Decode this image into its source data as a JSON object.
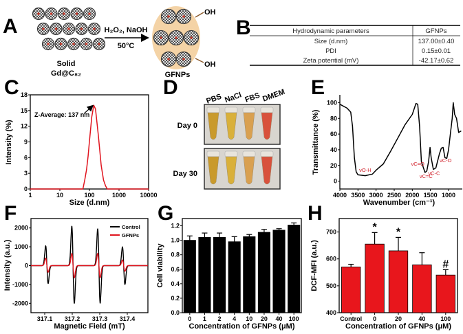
{
  "panels": [
    "A",
    "B",
    "C",
    "D",
    "E",
    "F",
    "G",
    "H"
  ],
  "scheme": {
    "solid_label": "Solid",
    "solid_formula": "Gd@C₈₂",
    "reagents": "H₂O₂, NaOH",
    "temperature": "50°C",
    "product_label": "GFNPs",
    "oh_label": "OH",
    "colors": {
      "cage": "#3a3a3a",
      "gd": "#c0392b",
      "shell": "#f4d3a6"
    }
  },
  "table": {
    "headers": [
      "Hydrodynamic parameters",
      "GFNPs"
    ],
    "rows": [
      [
        "Size (d.nm)",
        "137.00±0.40"
      ],
      [
        "PDI",
        "0.15±0.01"
      ],
      [
        "Zeta potential (mV)",
        "-42.17±0.62"
      ]
    ]
  },
  "photo": {
    "columns": [
      "PBS",
      "NaCl",
      "FBS",
      "DMEM"
    ],
    "rows": [
      "Day 0",
      "Day 30"
    ],
    "tube_colors": [
      "#c99a2c",
      "#d9b03a",
      "#d9a050",
      "#d8513c"
    ]
  },
  "chart_data": [
    {
      "id": "C",
      "type": "line",
      "xlabel": "Size (d.nm)",
      "ylabel": "Intensity (%)",
      "xscale": "log",
      "xlim": [
        1,
        10000
      ],
      "ylim": [
        0,
        18
      ],
      "xticks": [
        1,
        10,
        100,
        1000,
        10000
      ],
      "yticks": [
        0,
        3,
        6,
        9,
        12,
        15,
        18
      ],
      "color": "#e0141e",
      "x": [
        1,
        10,
        50,
        60,
        70,
        80,
        90,
        100,
        120,
        140,
        160,
        200,
        250,
        300,
        350,
        400,
        1000,
        10000
      ],
      "y": [
        0,
        0,
        0,
        0,
        1.8,
        3.7,
        6.2,
        9.1,
        13.8,
        16,
        15.3,
        10.3,
        4.5,
        1.7,
        0.6,
        0,
        0,
        0
      ],
      "annotation": {
        "text": "Z-Average: 137 nm",
        "x": 140,
        "y": 16
      }
    },
    {
      "id": "E",
      "type": "line",
      "xlabel": "Wavenumber (cm⁻¹)",
      "ylabel": "Transmittance (%)",
      "xlim": [
        4000,
        620
      ],
      "ylim": [
        -10,
        110
      ],
      "xticks": [
        4000,
        3500,
        3000,
        2500,
        2000,
        1500,
        1000
      ],
      "yticks": [
        0,
        20,
        40,
        60,
        80,
        100
      ],
      "color": "#000000",
      "x": [
        4000,
        3800,
        3700,
        3650,
        3600,
        3550,
        3500,
        3300,
        3100,
        3000,
        2800,
        2600,
        2400,
        2200,
        2000,
        1900,
        1850,
        1800,
        1750,
        1700,
        1650,
        1600,
        1550,
        1510,
        1480,
        1420,
        1350,
        1250,
        1200,
        1150,
        1100,
        1050,
        1000,
        950,
        900,
        870,
        830,
        780,
        720,
        650
      ],
      "y": [
        98,
        93,
        88,
        70,
        30,
        12,
        8,
        7,
        9,
        14,
        22,
        38,
        55,
        72,
        85,
        99,
        98,
        70,
        25,
        18,
        11,
        13,
        25,
        43,
        30,
        15,
        17,
        35,
        42,
        43,
        30,
        29,
        40,
        60,
        80,
        100,
        85,
        80,
        62,
        64
      ],
      "annotations": [
        {
          "text": "νO-H",
          "x": 3300,
          "y": 12
        },
        {
          "text": "νC=O",
          "x": 1850,
          "y": 20
        },
        {
          "text": "νC=C",
          "x": 1620,
          "y": 4
        },
        {
          "text": "νC-C",
          "x": 1400,
          "y": 8
        },
        {
          "text": "νC-O",
          "x": 1080,
          "y": 24
        }
      ],
      "annotation_color": "#d0202a"
    },
    {
      "id": "F",
      "type": "line",
      "xlabel": "Magnetic Field (mT)",
      "ylabel": "Intensity (a.u.)",
      "xlim": [
        317.05,
        317.475
      ],
      "ylim": [
        -2500,
        2500
      ],
      "xticks": [
        317.1,
        317.2,
        317.3,
        317.4
      ],
      "yticks": [
        -2000,
        -1000,
        0,
        1000,
        2000
      ],
      "legend": "top-right",
      "line_centers": [
        317.108,
        317.203,
        317.297,
        317.387
      ],
      "series": [
        {
          "name": "Control",
          "color": "#000000",
          "positive_peaks": [
            1050,
            2100,
            1950,
            1000
          ],
          "negative_peaks": [
            -950,
            -2000,
            -2000,
            -1000
          ]
        },
        {
          "name": "GFNPs",
          "color": "#e0141e",
          "positive_peaks": [
            400,
            650,
            650,
            300
          ],
          "negative_peaks": [
            -350,
            -650,
            -650,
            -300
          ]
        }
      ]
    },
    {
      "id": "G",
      "type": "bar",
      "xlabel": "Concentration of GFNPs (μM)",
      "ylabel": "Cell viability",
      "ylim": [
        0,
        1.3
      ],
      "yticks": [
        0.0,
        0.2,
        0.4,
        0.6,
        0.8,
        1.0,
        1.2
      ],
      "categories": [
        "0",
        "1",
        "2",
        "4",
        "10",
        "20",
        "40",
        "100"
      ],
      "values": [
        1.0,
        1.04,
        1.04,
        0.98,
        1.05,
        1.11,
        1.14,
        1.21
      ],
      "errors": [
        0.06,
        0.06,
        0.06,
        0.07,
        0.03,
        0.04,
        0.02,
        0.03
      ],
      "color": "#000000"
    },
    {
      "id": "H",
      "type": "bar",
      "xlabel": "Concentration of GFNPs (μM)",
      "ylabel": "DCF-MFI (a.u.)",
      "ylim": [
        400,
        750
      ],
      "yticks": [
        400,
        500,
        600,
        700
      ],
      "categories": [
        "Control",
        "0",
        "20",
        "40",
        "100"
      ],
      "values": [
        570,
        655,
        630,
        578,
        540
      ],
      "errors": [
        10,
        43,
        50,
        45,
        20
      ],
      "significance": [
        "",
        "*",
        "*",
        "",
        "#"
      ],
      "color": "#e8161c"
    }
  ]
}
